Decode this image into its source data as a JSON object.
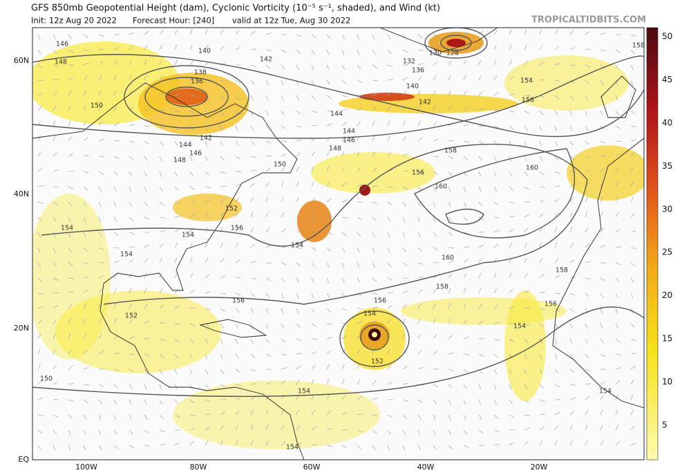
{
  "header": {
    "title": "GFS 850mb Geopotential Height (dam), Cyclonic Vorticity (10⁻⁵ s⁻¹, shaded), and Wind (kt)",
    "init": "Init: 12z Aug 20 2022",
    "forecast_hour": "Forecast Hour: [240]",
    "valid": "valid at 12z Tue, Aug 30 2022",
    "site": "TROPICALTIDBITS.COM"
  },
  "map": {
    "lat_labels": [
      "60N",
      "40N",
      "20N",
      "EQ"
    ],
    "lon_labels": [
      "100W",
      "80W",
      "60W",
      "40W",
      "20W"
    ],
    "contour_labels": [
      "140",
      "142",
      "138",
      "136",
      "146",
      "148",
      "150",
      "142",
      "144",
      "146",
      "148",
      "150",
      "152",
      "154",
      "154",
      "156",
      "154",
      "154",
      "132",
      "130",
      "128",
      "136",
      "140",
      "142",
      "144",
      "144",
      "146",
      "148",
      "156",
      "158",
      "160",
      "160",
      "160",
      "158",
      "156",
      "154",
      "152",
      "156",
      "152",
      "150",
      "154",
      "154",
      "154",
      "156",
      "158",
      "154",
      "156",
      "158",
      "154"
    ]
  },
  "colorbar": {
    "ticks": [
      "5",
      "10",
      "15",
      "20",
      "25",
      "30",
      "35",
      "40",
      "45",
      "50"
    ]
  }
}
